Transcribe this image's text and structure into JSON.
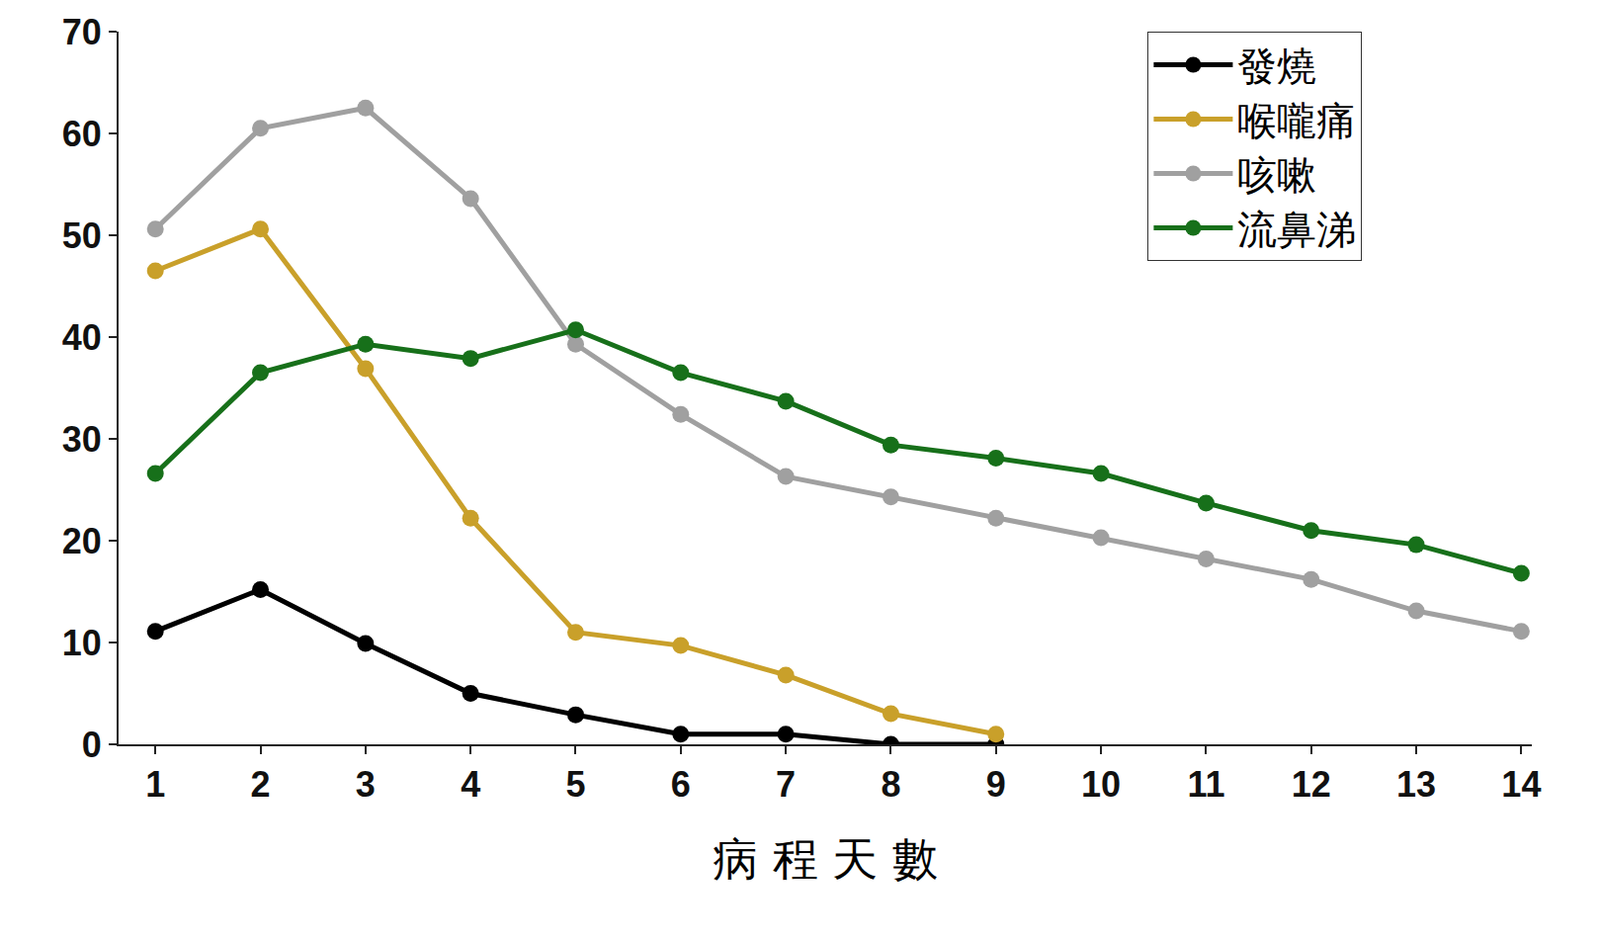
{
  "chart_data": {
    "type": "line",
    "x_label": "病 程 天 數",
    "x": [
      1,
      2,
      3,
      4,
      5,
      6,
      7,
      8,
      9,
      10,
      11,
      12,
      13,
      14
    ],
    "series": [
      {
        "name": "發燒",
        "color": "#000000",
        "marker": "circle",
        "line_style": "solid",
        "values": [
          11.1,
          15.2,
          9.9,
          5.0,
          2.9,
          1.0,
          1.0,
          0,
          0,
          null,
          null,
          null,
          null,
          null
        ]
      },
      {
        "name": "喉嚨痛",
        "color": "#c9a02a",
        "marker": "circle",
        "line_style": "solid",
        "values": [
          46.5,
          50.6,
          36.9,
          22.2,
          11.0,
          9.7,
          6.8,
          3.0,
          1.0,
          null,
          null,
          null,
          null,
          null
        ]
      },
      {
        "name": "咳嗽",
        "color": "#a0a0a0",
        "marker": "circle",
        "line_style": "solid",
        "values": [
          50.6,
          60.5,
          62.5,
          53.6,
          39.3,
          32.4,
          26.3,
          24.3,
          22.2,
          20.3,
          18.2,
          16.2,
          13.1,
          11.1
        ]
      },
      {
        "name": "流鼻涕",
        "color": "#17701a",
        "marker": "circle",
        "line_style": "solid",
        "values": [
          26.6,
          36.5,
          39.3,
          37.9,
          40.7,
          36.5,
          33.7,
          29.4,
          28.1,
          26.6,
          23.7,
          21.0,
          19.6,
          16.8
        ]
      }
    ],
    "xlim": [
      0.65,
      14.1
    ],
    "xticks": [
      1,
      2,
      3,
      4,
      5,
      6,
      7,
      8,
      9,
      10,
      11,
      12,
      13,
      14
    ],
    "ylim": [
      0,
      70
    ],
    "yticks": [
      0,
      10,
      20,
      30,
      40,
      50,
      60,
      70
    ],
    "grid": false,
    "legend": "top right"
  }
}
